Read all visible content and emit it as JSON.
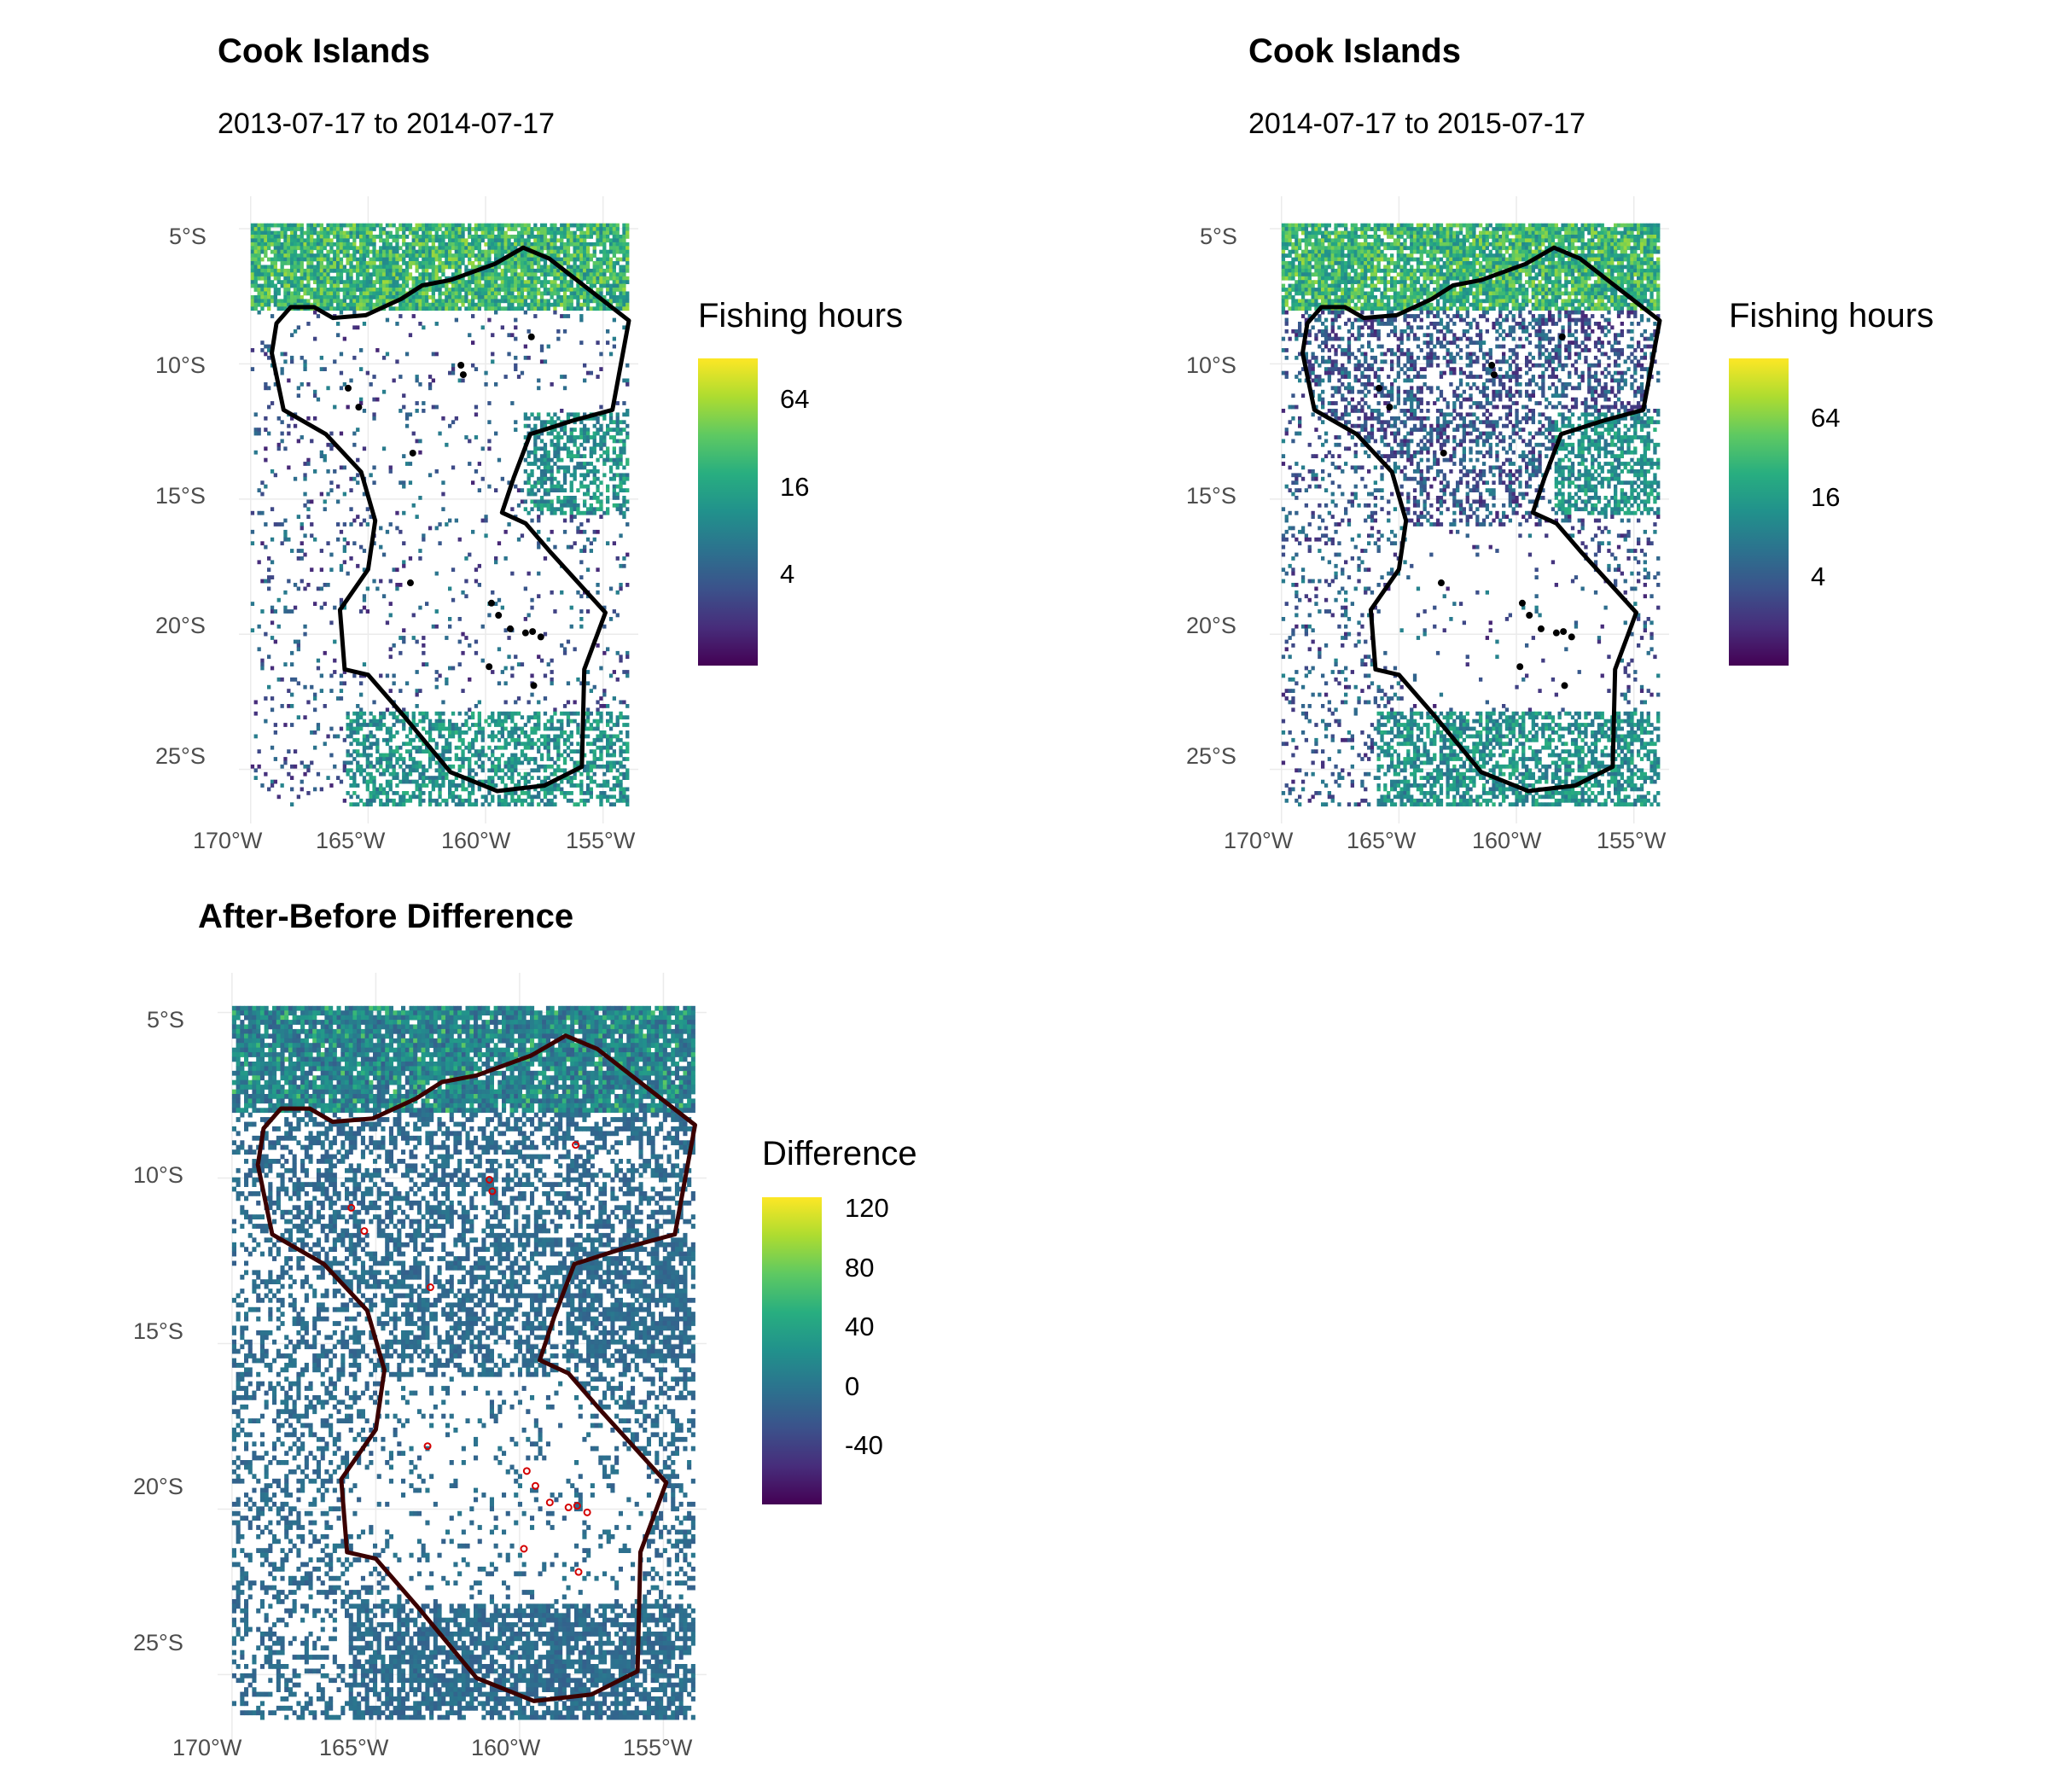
{
  "colors": {
    "viridis": [
      "#440154",
      "#472d7b",
      "#3b528b",
      "#2c728e",
      "#21918c",
      "#28ae80",
      "#5ec962",
      "#addc30",
      "#fde725"
    ],
    "boundary": "#000000",
    "boundary_diff": "#3b0000",
    "diff_islands": "#d40000",
    "grid": "#ebebeb"
  },
  "panels": [
    {
      "title": "Cook Islands",
      "subtitle": "2013-07-17 to 2014-07-17",
      "legend": {
        "title": "Fishing hours",
        "labels": [
          "64",
          "16",
          "4"
        ]
      },
      "x_ticks": [
        "170°W",
        "165°W",
        "160°W",
        "155°W"
      ],
      "y_ticks": [
        "5°S",
        "10°S",
        "15°S",
        "20°S",
        "25°S"
      ]
    },
    {
      "title": "Cook Islands",
      "subtitle": "2014-07-17 to 2015-07-17",
      "legend": {
        "title": "Fishing hours",
        "labels": [
          "64",
          "16",
          "4"
        ]
      },
      "x_ticks": [
        "170°W",
        "165°W",
        "160°W",
        "155°W"
      ],
      "y_ticks": [
        "5°S",
        "10°S",
        "15°S",
        "20°S",
        "25°S"
      ]
    },
    {
      "title": "After-Before Difference",
      "subtitle": "",
      "legend": {
        "title": "Difference",
        "labels": [
          "120",
          "80",
          "40",
          "0",
          "-40"
        ]
      },
      "x_ticks": [
        "170°W",
        "165°W",
        "160°W",
        "155°W"
      ],
      "y_ticks": [
        "5°S",
        "10°S",
        "15°S",
        "20°S",
        "25°S"
      ]
    }
  ],
  "map_data": {
    "lon_range": [
      -170.5,
      -153.5
    ],
    "lat_range": [
      -27.0,
      -3.8
    ],
    "raster_extent": {
      "lon": [
        -170,
        -154
      ],
      "lat": [
        -26.3,
        -4.8
      ]
    },
    "eez_boundary": [
      [
        -166.5,
        -8.3
      ],
      [
        -167.3,
        -7.9
      ],
      [
        -168.3,
        -7.9
      ],
      [
        -168.9,
        -8.5
      ],
      [
        -169.1,
        -9.6
      ],
      [
        -168.6,
        -11.7
      ],
      [
        -166.8,
        -12.6
      ],
      [
        -165.3,
        -14.0
      ],
      [
        -164.7,
        -15.8
      ],
      [
        -165.0,
        -17.6
      ],
      [
        -166.2,
        -19.1
      ],
      [
        -166.0,
        -21.3
      ],
      [
        -165.0,
        -21.5
      ],
      [
        -163.5,
        -23.0
      ],
      [
        -161.5,
        -25.1
      ],
      [
        -159.5,
        -25.8
      ],
      [
        -157.5,
        -25.6
      ],
      [
        -155.9,
        -24.9
      ],
      [
        -155.8,
        -21.3
      ],
      [
        -154.9,
        -19.2
      ],
      [
        -157.2,
        -17.0
      ],
      [
        -158.3,
        -15.9
      ],
      [
        -159.3,
        -15.5
      ],
      [
        -158.8,
        -14.2
      ],
      [
        -158.1,
        -12.6
      ],
      [
        -156.3,
        -12.1
      ],
      [
        -154.6,
        -11.7
      ],
      [
        -153.9,
        -8.4
      ],
      [
        -157.3,
        -6.1
      ],
      [
        -158.4,
        -5.7
      ],
      [
        -159.6,
        -6.3
      ],
      [
        -161.5,
        -6.9
      ],
      [
        -162.7,
        -7.1
      ],
      [
        -163.6,
        -7.6
      ],
      [
        -165.1,
        -8.2
      ],
      [
        -166.5,
        -8.3
      ]
    ],
    "islands": [
      [
        -158.05,
        -9.0
      ],
      [
        -161.05,
        -10.05
      ],
      [
        -160.95,
        -10.4
      ],
      [
        -165.85,
        -10.9
      ],
      [
        -165.4,
        -11.6
      ],
      [
        -163.1,
        -13.3
      ],
      [
        -163.2,
        -18.1
      ],
      [
        -159.75,
        -18.85
      ],
      [
        -159.45,
        -19.3
      ],
      [
        -158.95,
        -19.8
      ],
      [
        -158.3,
        -19.95
      ],
      [
        -158.0,
        -19.9
      ],
      [
        -157.65,
        -20.1
      ],
      [
        -159.85,
        -21.2
      ],
      [
        -157.95,
        -21.9
      ]
    ],
    "hotspots": [
      {
        "lon": [
          -170,
          -154
        ],
        "lat": [
          -8.0,
          -4.8
        ],
        "strength": 0.95
      },
      {
        "lon": [
          -158.5,
          -154
        ],
        "lat": [
          -15.5,
          -11.8
        ],
        "strength": 0.65
      },
      {
        "lon": [
          -166,
          -154
        ],
        "lat": [
          -26.3,
          -22.8
        ],
        "strength": 0.55
      },
      {
        "lon": [
          -163,
          -155
        ],
        "lat": [
          -13.0,
          -8.5
        ],
        "strength": 0.35
      }
    ]
  }
}
